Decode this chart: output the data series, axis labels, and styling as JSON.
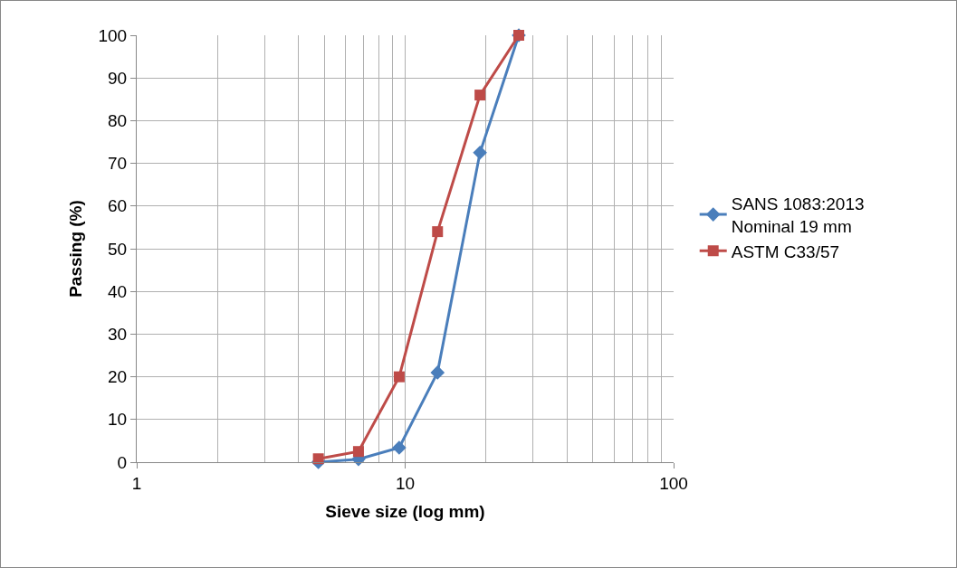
{
  "chart_data": {
    "type": "line",
    "xlabel": "Sieve size (log mm)",
    "ylabel": "Passing (%)",
    "log": "x",
    "xlim": [
      1,
      100
    ],
    "xticks": [
      1,
      10,
      100
    ],
    "ylim": [
      0,
      100
    ],
    "yticks": [
      0,
      10,
      20,
      30,
      40,
      50,
      60,
      70,
      80,
      90,
      100
    ],
    "grid": true,
    "legend": "right",
    "line_style": "solid",
    "series": [
      {
        "name": "SANS 1083:2013 Nominal 19 mm",
        "color": "#4a7ebb",
        "marker": "diamond",
        "x": [
          4.75,
          6.7,
          9.5,
          13.2,
          19,
          26.5
        ],
        "values": [
          0,
          0.7,
          3.4,
          21,
          72.5,
          100
        ]
      },
      {
        "name": "ASTM C33/57",
        "color": "#be4b48",
        "marker": "square",
        "x": [
          4.75,
          6.7,
          9.5,
          13.2,
          19,
          26.5
        ],
        "values": [
          0.8,
          2.5,
          20,
          54,
          86,
          100
        ]
      }
    ]
  }
}
